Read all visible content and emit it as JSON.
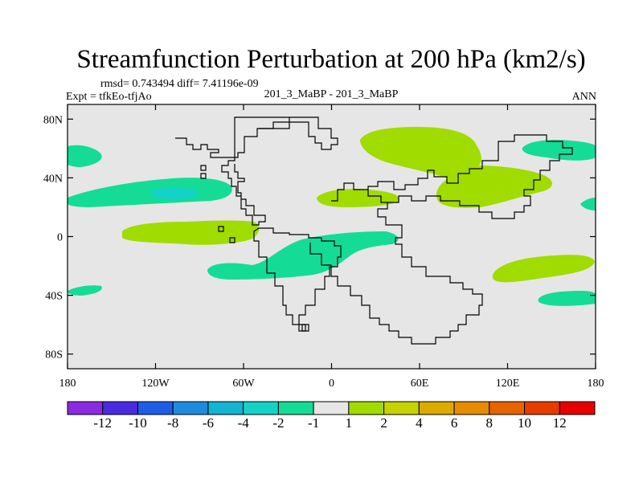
{
  "chart_data": {
    "type": "heatmap",
    "title": "Streamfunction Perturbation at 200 hPa (km2/s)",
    "stats_line": "rmsd= 0.743494 diff= 7.41196e-09",
    "experiment": "Expt = tfkEo-tfjAo",
    "case_label": "201_3_MaBP - 201_3_MaBP",
    "season": "ANN",
    "xlim": [
      -180,
      180
    ],
    "ylim": [
      -90,
      90
    ],
    "x_ticks": [
      {
        "value": -180,
        "label": "180"
      },
      {
        "value": -120,
        "label": "120W"
      },
      {
        "value": -60,
        "label": "60W"
      },
      {
        "value": 0,
        "label": "0"
      },
      {
        "value": 60,
        "label": "60E"
      },
      {
        "value": 120,
        "label": "120E"
      },
      {
        "value": 180,
        "label": "180"
      }
    ],
    "y_ticks": [
      {
        "value": 80,
        "label": "80N"
      },
      {
        "value": 40,
        "label": "40N"
      },
      {
        "value": 0,
        "label": "0"
      },
      {
        "value": -40,
        "label": "40S"
      },
      {
        "value": -80,
        "label": "80S"
      }
    ],
    "background_color": "#e6e6e6",
    "colorbar": {
      "colors": [
        "#8a2be2",
        "#4b2be2",
        "#1e5ee6",
        "#1e8cdc",
        "#14b4d2",
        "#14d2c8",
        "#14dc96",
        "#e6e6e6",
        "#a0dc00",
        "#c8d200",
        "#dcaa00",
        "#e68c00",
        "#e66400",
        "#e63c00",
        "#e60000"
      ],
      "labels": [
        "-12",
        "-10",
        "-8",
        "-6",
        "-4",
        "-2",
        "-1",
        "1",
        "2",
        "4",
        "6",
        "8",
        "10",
        "12"
      ]
    },
    "regions": [
      {
        "level": "-1 to -2",
        "color": "#14dc96",
        "lon": [
          -180,
          -160
        ],
        "lat": [
          38,
          20
        ]
      },
      {
        "level": "-1 to -2",
        "color": "#14dc96",
        "lon": [
          -165,
          -75
        ],
        "lat": [
          40,
          20
        ]
      },
      {
        "level": "-2 to -4",
        "color": "#14d2c8",
        "lon": [
          -120,
          -95
        ],
        "lat": [
          33,
          25
        ]
      },
      {
        "level": "1 to 2",
        "color": "#a0dc00",
        "lon": [
          -140,
          -95
        ],
        "lat": [
          10,
          -5
        ]
      },
      {
        "level": "-1 to -2",
        "color": "#14dc96",
        "lon": [
          -85,
          45
        ],
        "lat": [
          0,
          -30
        ]
      },
      {
        "level": "-1 to -2",
        "color": "#14dc96",
        "lon": [
          -180,
          -165
        ],
        "lat": [
          -32,
          -40
        ]
      },
      {
        "level": "1 to 2",
        "color": "#a0dc00",
        "lon": [
          -10,
          40
        ],
        "lat": [
          32,
          20
        ]
      },
      {
        "level": "1 to 2",
        "color": "#a0dc00",
        "lon": [
          20,
          155
        ],
        "lat": [
          78,
          20
        ]
      },
      {
        "level": "-1 to -2",
        "color": "#14dc96",
        "lon": [
          130,
          180
        ],
        "lat": [
          65,
          50
        ]
      },
      {
        "level": "-1 to -2",
        "color": "#14dc96",
        "lon": [
          170,
          180
        ],
        "lat": [
          28,
          20
        ]
      },
      {
        "level": "1 to 2",
        "color": "#a0dc00",
        "lon": [
          110,
          175
        ],
        "lat": [
          -10,
          -30
        ]
      },
      {
        "level": "-1 to -2",
        "color": "#14dc96",
        "lon": [
          140,
          180
        ],
        "lat": [
          -35,
          -48
        ]
      }
    ]
  }
}
